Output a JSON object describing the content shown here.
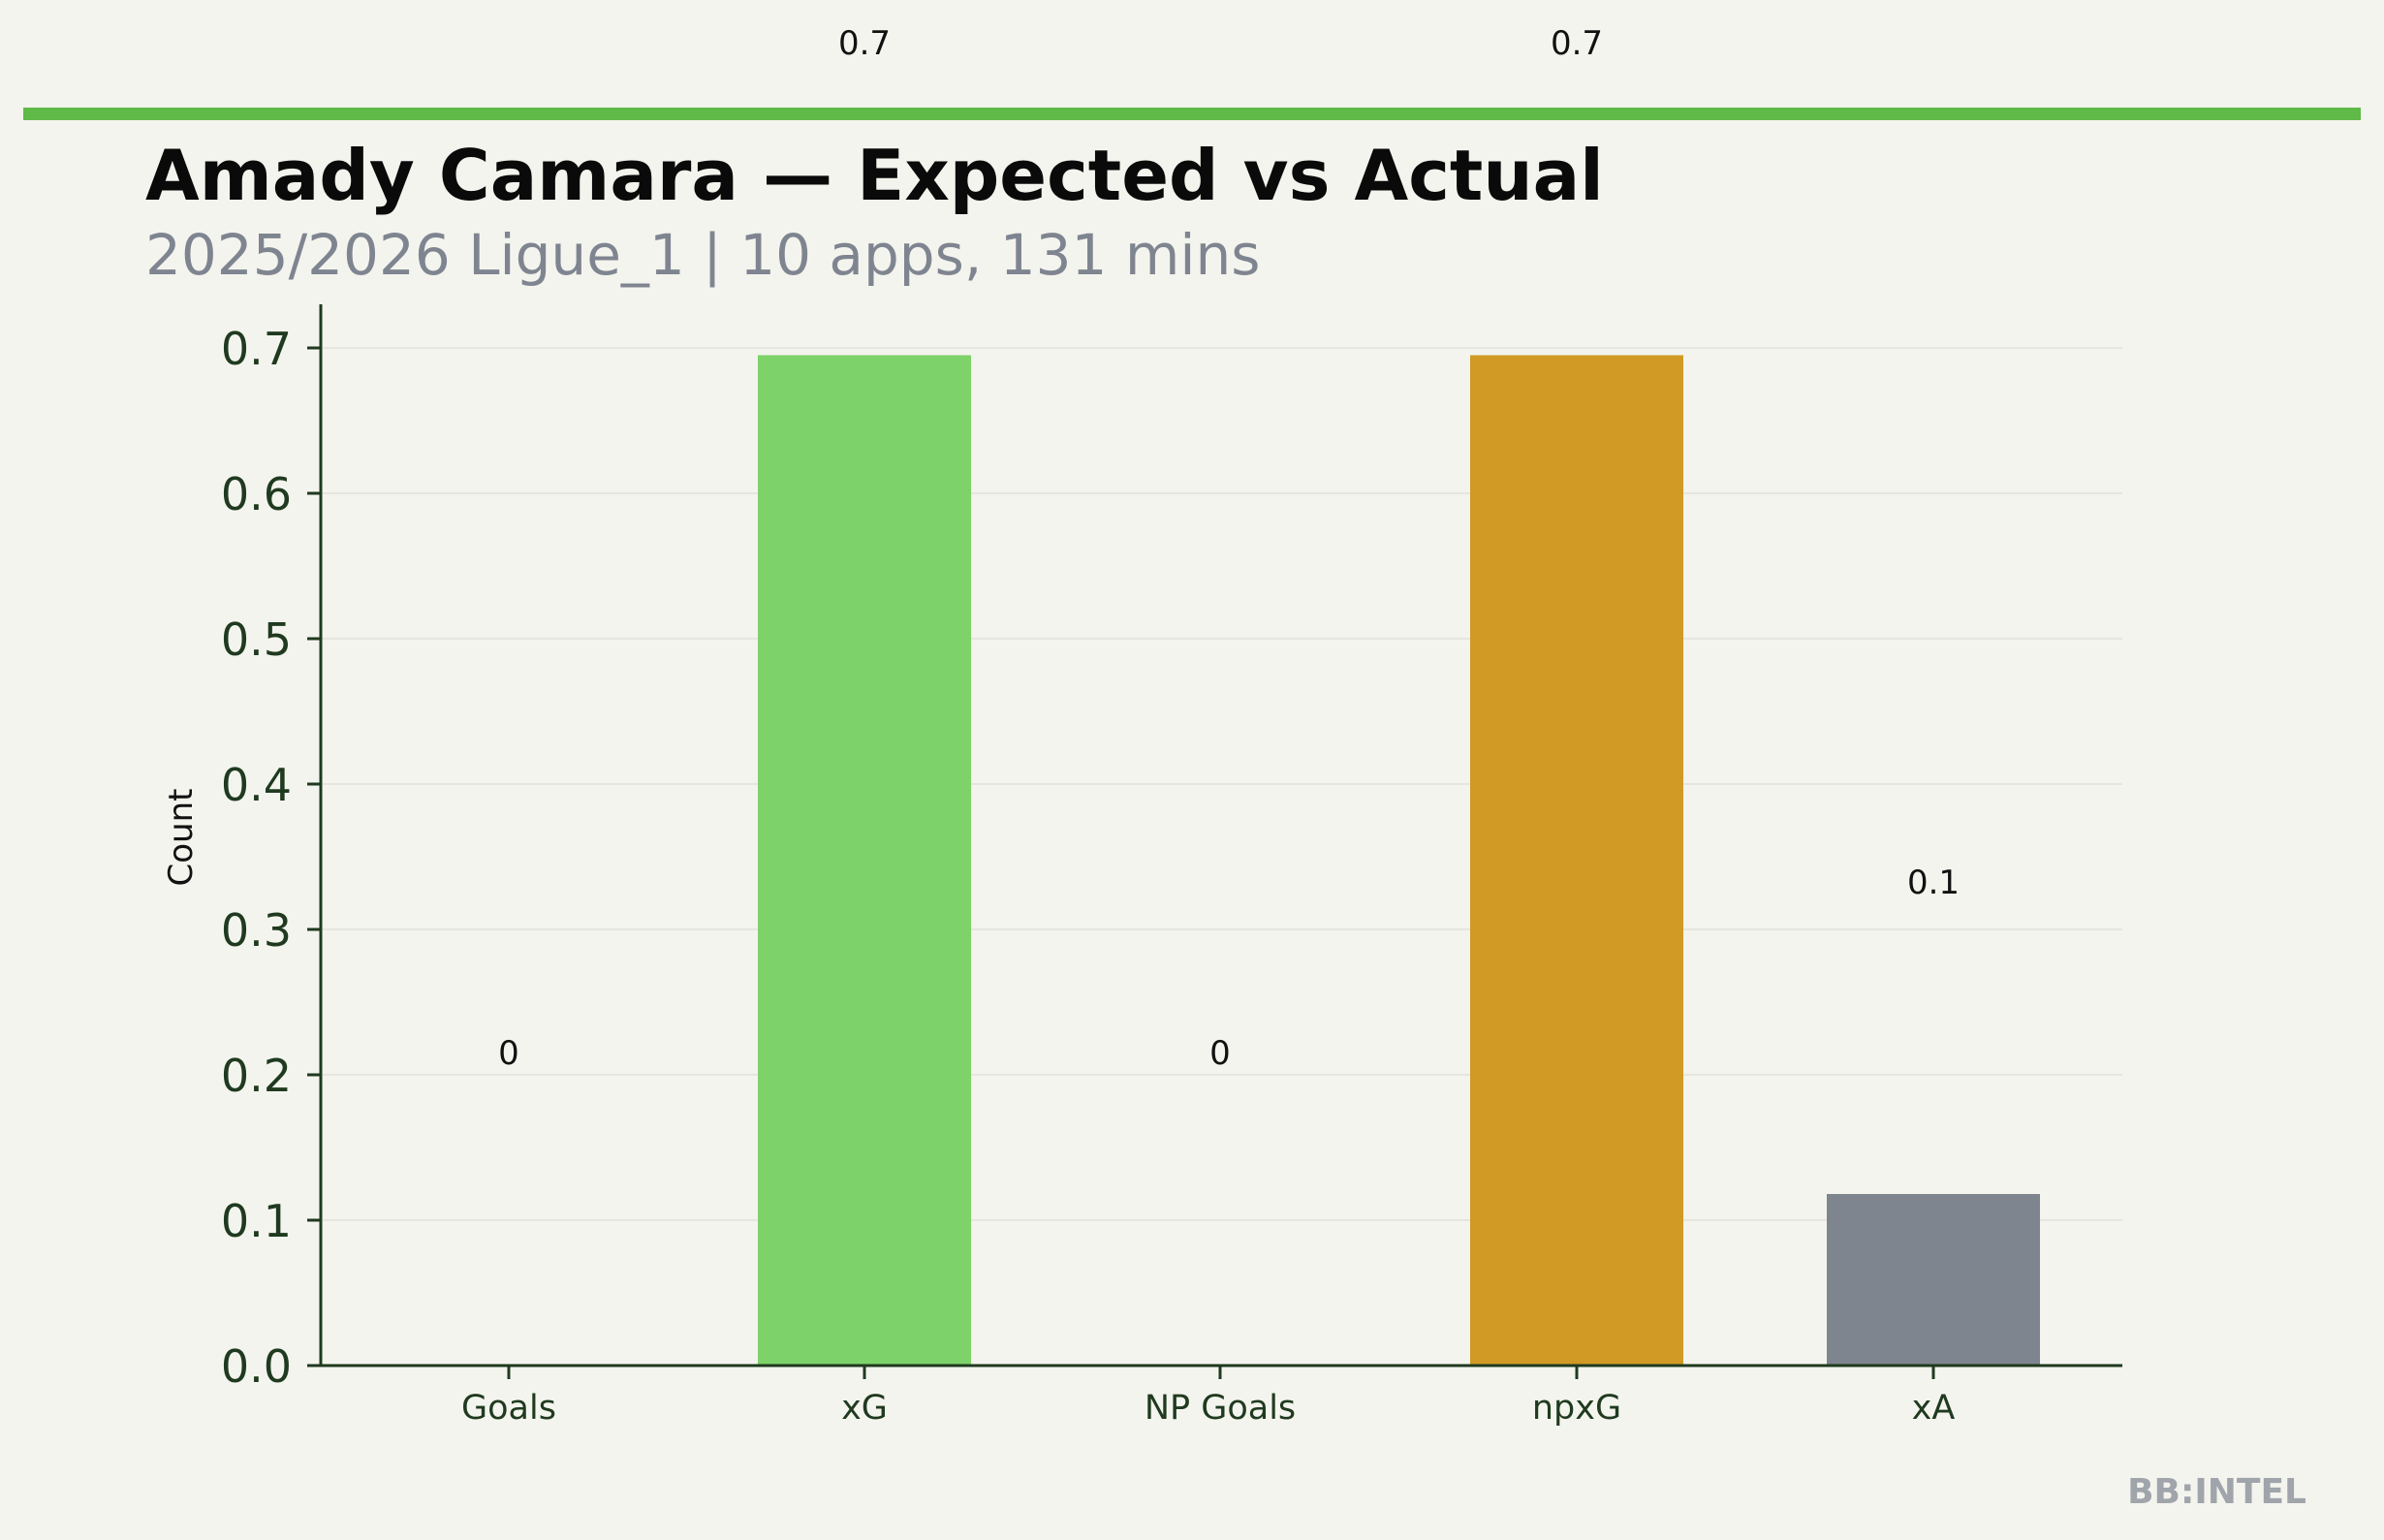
{
  "chart_data": {
    "type": "bar",
    "title": "Amady Camara — Expected vs Actual",
    "subtitle": "2025/2026 Ligue_1 | 10 apps, 131 mins",
    "xlabel": "",
    "ylabel": "Count",
    "categories": [
      "Goals",
      "xG",
      "NP Goals",
      "npxG",
      "xA"
    ],
    "values": [
      0,
      0.695,
      0,
      0.695,
      0.118
    ],
    "value_labels": [
      "0",
      "0.7",
      "0",
      "0.7",
      "0.1"
    ],
    "bar_colors": [
      "#7dd269",
      "#7dd269",
      "#d19a24",
      "#d19a24",
      "#7f858e"
    ],
    "ylim": [
      0,
      0.73
    ],
    "yticks": [
      0.0,
      0.1,
      0.2,
      0.3,
      0.4,
      0.5,
      0.6,
      0.7
    ],
    "ytick_labels": [
      "0.0",
      "0.1",
      "0.2",
      "0.3",
      "0.4",
      "0.5",
      "0.6",
      "0.7"
    ],
    "grid": true,
    "legend": "none"
  },
  "branding": {
    "watermark": "BB:INTEL",
    "accent_color": "#5fba47"
  }
}
